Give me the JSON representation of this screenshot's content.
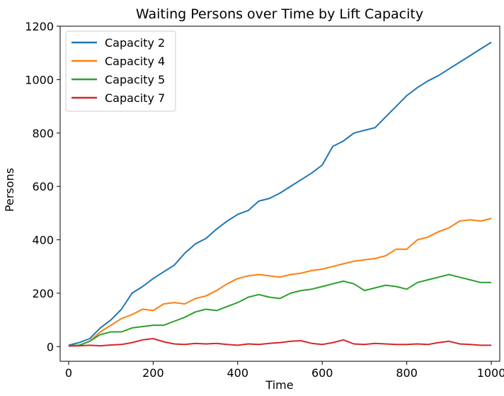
{
  "chart_data": {
    "type": "line",
    "title": "Waiting Persons over Time by Lift Capacity",
    "xlabel": "Time",
    "ylabel": "Persons",
    "xlim": [
      -20,
      1020
    ],
    "ylim": [
      -55,
      1200
    ],
    "xticks": [
      0,
      200,
      400,
      600,
      800,
      1000
    ],
    "yticks": [
      0,
      200,
      400,
      600,
      800,
      1000,
      1200
    ],
    "grid": false,
    "legend_position": "top-left",
    "series": [
      {
        "name": "Capacity 2",
        "color": "#1f77b4",
        "x": [
          0,
          25,
          50,
          75,
          100,
          125,
          150,
          175,
          200,
          225,
          250,
          275,
          300,
          325,
          350,
          375,
          400,
          425,
          450,
          475,
          500,
          525,
          550,
          575,
          600,
          625,
          650,
          675,
          700,
          725,
          750,
          775,
          800,
          825,
          850,
          875,
          900,
          925,
          950,
          975,
          1000
        ],
        "values": [
          5,
          15,
          30,
          70,
          100,
          140,
          200,
          225,
          255,
          280,
          305,
          350,
          385,
          405,
          440,
          470,
          495,
          510,
          545,
          555,
          575,
          600,
          625,
          650,
          680,
          750,
          770,
          800,
          810,
          820,
          860,
          900,
          940,
          970,
          995,
          1015,
          1040,
          1065,
          1090,
          1115,
          1140
        ]
      },
      {
        "name": "Capacity 4",
        "color": "#ff7f0e",
        "x": [
          0,
          25,
          50,
          75,
          100,
          125,
          150,
          175,
          200,
          225,
          250,
          275,
          300,
          325,
          350,
          375,
          400,
          425,
          450,
          475,
          500,
          525,
          550,
          575,
          600,
          625,
          650,
          675,
          700,
          725,
          750,
          775,
          800,
          825,
          850,
          875,
          900,
          925,
          950,
          975,
          1000
        ],
        "values": [
          3,
          5,
          20,
          55,
          80,
          105,
          120,
          140,
          135,
          160,
          165,
          160,
          180,
          190,
          210,
          235,
          255,
          265,
          270,
          265,
          260,
          270,
          275,
          285,
          290,
          300,
          310,
          320,
          325,
          330,
          340,
          365,
          365,
          400,
          410,
          430,
          445,
          470,
          475,
          470,
          480
        ]
      },
      {
        "name": "Capacity 5",
        "color": "#2ca02c",
        "x": [
          0,
          25,
          50,
          75,
          100,
          125,
          150,
          175,
          200,
          225,
          250,
          275,
          300,
          325,
          350,
          375,
          400,
          425,
          450,
          475,
          500,
          525,
          550,
          575,
          600,
          625,
          650,
          675,
          700,
          725,
          750,
          775,
          800,
          825,
          850,
          875,
          900,
          925,
          950,
          975,
          1000
        ],
        "values": [
          3,
          5,
          20,
          45,
          55,
          55,
          70,
          75,
          80,
          80,
          95,
          110,
          130,
          140,
          135,
          150,
          165,
          185,
          195,
          185,
          180,
          200,
          210,
          215,
          225,
          235,
          245,
          235,
          210,
          220,
          230,
          225,
          215,
          240,
          250,
          260,
          270,
          260,
          250,
          240,
          240
        ]
      },
      {
        "name": "Capacity 7",
        "color": "#d62728",
        "x": [
          0,
          25,
          50,
          75,
          100,
          125,
          150,
          175,
          200,
          225,
          250,
          275,
          300,
          325,
          350,
          375,
          400,
          425,
          450,
          475,
          500,
          525,
          550,
          575,
          600,
          625,
          650,
          675,
          700,
          725,
          750,
          775,
          800,
          825,
          850,
          875,
          900,
          925,
          950,
          975,
          1000
        ],
        "values": [
          2,
          3,
          5,
          3,
          6,
          8,
          15,
          25,
          30,
          18,
          10,
          8,
          12,
          10,
          12,
          8,
          5,
          10,
          8,
          12,
          15,
          20,
          22,
          12,
          8,
          15,
          25,
          10,
          8,
          12,
          10,
          8,
          8,
          10,
          8,
          15,
          20,
          10,
          8,
          5,
          5
        ]
      }
    ]
  }
}
